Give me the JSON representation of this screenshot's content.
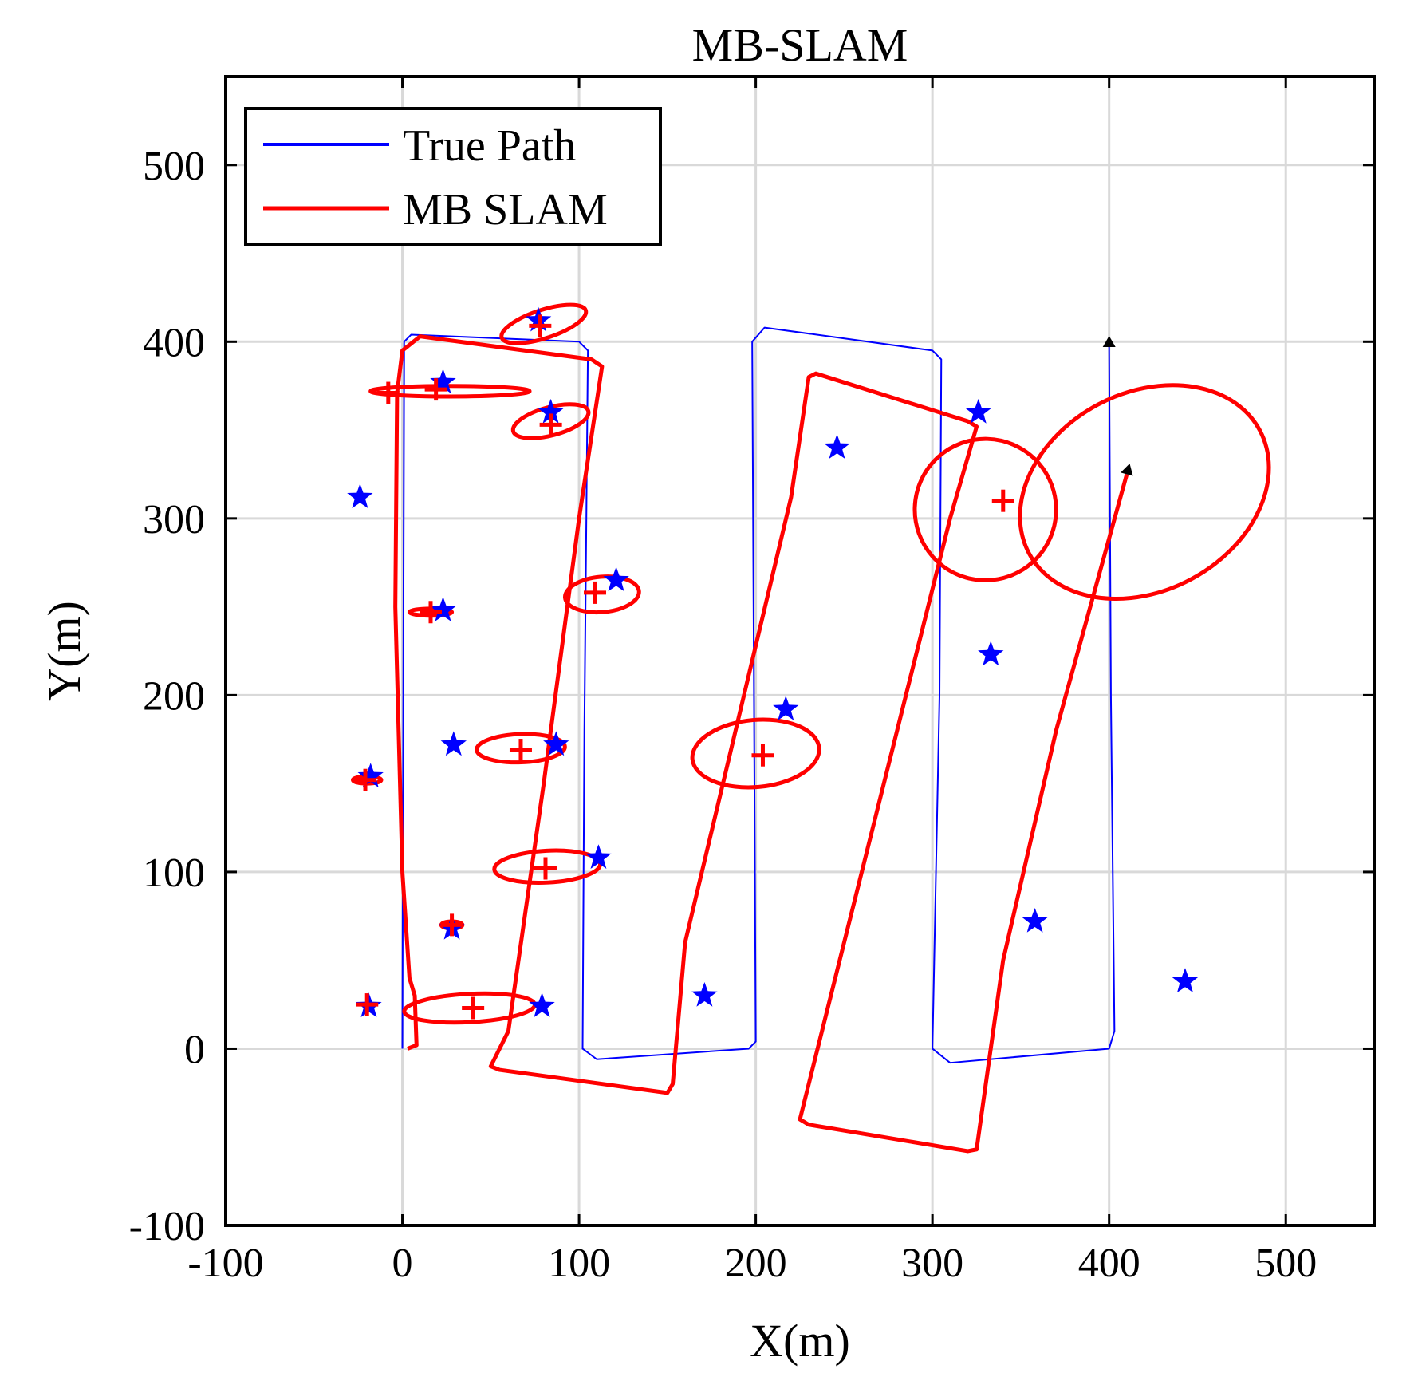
{
  "chart_data": {
    "type": "line",
    "title": "MB-SLAM",
    "xlabel": "X(m)",
    "ylabel": "Y(m)",
    "xlim": [
      -100,
      550
    ],
    "ylim": [
      -100,
      550
    ],
    "xticks": [
      -100,
      0,
      100,
      200,
      300,
      400,
      500
    ],
    "yticks": [
      -100,
      0,
      100,
      200,
      300,
      400,
      500
    ],
    "grid": true,
    "legend_position": "top-left",
    "colors": {
      "true_path": "#0000ff",
      "slam": "#ff0000",
      "arrow": "#000000"
    },
    "series": [
      {
        "name": "True Path",
        "color": "#0000ff",
        "points": [
          [
            0,
            0
          ],
          [
            1,
            400
          ],
          [
            5,
            404
          ],
          [
            100,
            400
          ],
          [
            105,
            395
          ],
          [
            103,
            180
          ],
          [
            102,
            0
          ],
          [
            110,
            -6
          ],
          [
            196,
            0
          ],
          [
            200,
            4
          ],
          [
            199,
            200
          ],
          [
            198,
            400
          ],
          [
            205,
            408
          ],
          [
            300,
            395
          ],
          [
            305,
            390
          ],
          [
            304,
            200
          ],
          [
            300,
            0
          ],
          [
            310,
            -8
          ],
          [
            400,
            0
          ],
          [
            403,
            10
          ],
          [
            401,
            200
          ],
          [
            400,
            397
          ]
        ]
      },
      {
        "name": "MB SLAM",
        "color": "#ff0000",
        "points": [
          [
            3,
            0
          ],
          [
            8,
            2
          ],
          [
            7,
            30
          ],
          [
            4,
            40
          ],
          [
            0,
            100
          ],
          [
            -4,
            250
          ],
          [
            -3,
            371
          ],
          [
            0,
            395
          ],
          [
            10,
            403
          ],
          [
            107,
            390
          ],
          [
            113,
            386
          ],
          [
            100,
            300
          ],
          [
            80,
            150
          ],
          [
            60,
            10
          ],
          [
            50,
            -10
          ],
          [
            55,
            -12
          ],
          [
            150,
            -25
          ],
          [
            153,
            -20
          ],
          [
            160,
            60
          ],
          [
            220,
            312
          ],
          [
            230,
            380
          ],
          [
            234,
            382
          ],
          [
            320,
            355
          ],
          [
            325,
            352
          ],
          [
            310,
            300
          ],
          [
            260,
            100
          ],
          [
            225,
            -40
          ],
          [
            230,
            -43
          ],
          [
            320,
            -58
          ],
          [
            325,
            -57
          ],
          [
            340,
            50
          ],
          [
            370,
            180
          ],
          [
            410,
            325
          ]
        ]
      }
    ],
    "landmarks_true": [
      [
        77,
        412
      ],
      [
        23,
        377
      ],
      [
        -24,
        312
      ],
      [
        84,
        360
      ],
      [
        121,
        265
      ],
      [
        23,
        248
      ],
      [
        29,
        172
      ],
      [
        87,
        172
      ],
      [
        -18,
        154
      ],
      [
        111,
        108
      ],
      [
        28,
        68
      ],
      [
        -19,
        24
      ],
      [
        79,
        24
      ],
      [
        171,
        30
      ],
      [
        217,
        192
      ],
      [
        246,
        340
      ],
      [
        326,
        360
      ],
      [
        333,
        223
      ],
      [
        358,
        72
      ],
      [
        443,
        38
      ]
    ],
    "landmarks_estimated": [
      [
        78,
        409
      ],
      [
        -8,
        371
      ],
      [
        19,
        373
      ],
      [
        84,
        353
      ],
      [
        109,
        258
      ],
      [
        16,
        247
      ],
      [
        67,
        169
      ],
      [
        -21,
        152
      ],
      [
        81,
        102
      ],
      [
        28,
        70
      ],
      [
        -20,
        25
      ],
      [
        40,
        23
      ],
      [
        204,
        166
      ],
      [
        340,
        310
      ]
    ],
    "ellipses": [
      {
        "cx": 80,
        "cy": 410,
        "rx": 25,
        "ry": 8,
        "rot": -18
      },
      {
        "cx": 27,
        "cy": 372,
        "rx": 45,
        "ry": 3,
        "rot": 0
      },
      {
        "cx": 84,
        "cy": 355,
        "rx": 22,
        "ry": 8,
        "rot": -15
      },
      {
        "cx": 113,
        "cy": 257,
        "rx": 21,
        "ry": 10,
        "rot": -5
      },
      {
        "cx": 16,
        "cy": 247,
        "rx": 12,
        "ry": 2,
        "rot": 0
      },
      {
        "cx": 67,
        "cy": 170,
        "rx": 25,
        "ry": 8,
        "rot": -2
      },
      {
        "cx": -20,
        "cy": 152,
        "rx": 8,
        "ry": 2,
        "rot": 0
      },
      {
        "cx": 82,
        "cy": 103,
        "rx": 30,
        "ry": 9,
        "rot": -3
      },
      {
        "cx": 28,
        "cy": 70,
        "rx": 6,
        "ry": 2,
        "rot": 0
      },
      {
        "cx": 38,
        "cy": 23,
        "rx": 37,
        "ry": 8,
        "rot": -3
      },
      {
        "cx": 200,
        "cy": 167,
        "rx": 36,
        "ry": 19,
        "rot": -5
      },
      {
        "cx": 330,
        "cy": 305,
        "rx": 40,
        "ry": 40,
        "rot": -20
      },
      {
        "cx": 420,
        "cy": 315,
        "rx": 74,
        "ry": 56,
        "rot": -28
      }
    ],
    "arrows": [
      {
        "x": 400,
        "y": 397,
        "dx": 0,
        "dy": 1
      },
      {
        "x": 410,
        "y": 325,
        "dx": 0.26,
        "dy": 0.97
      }
    ]
  }
}
